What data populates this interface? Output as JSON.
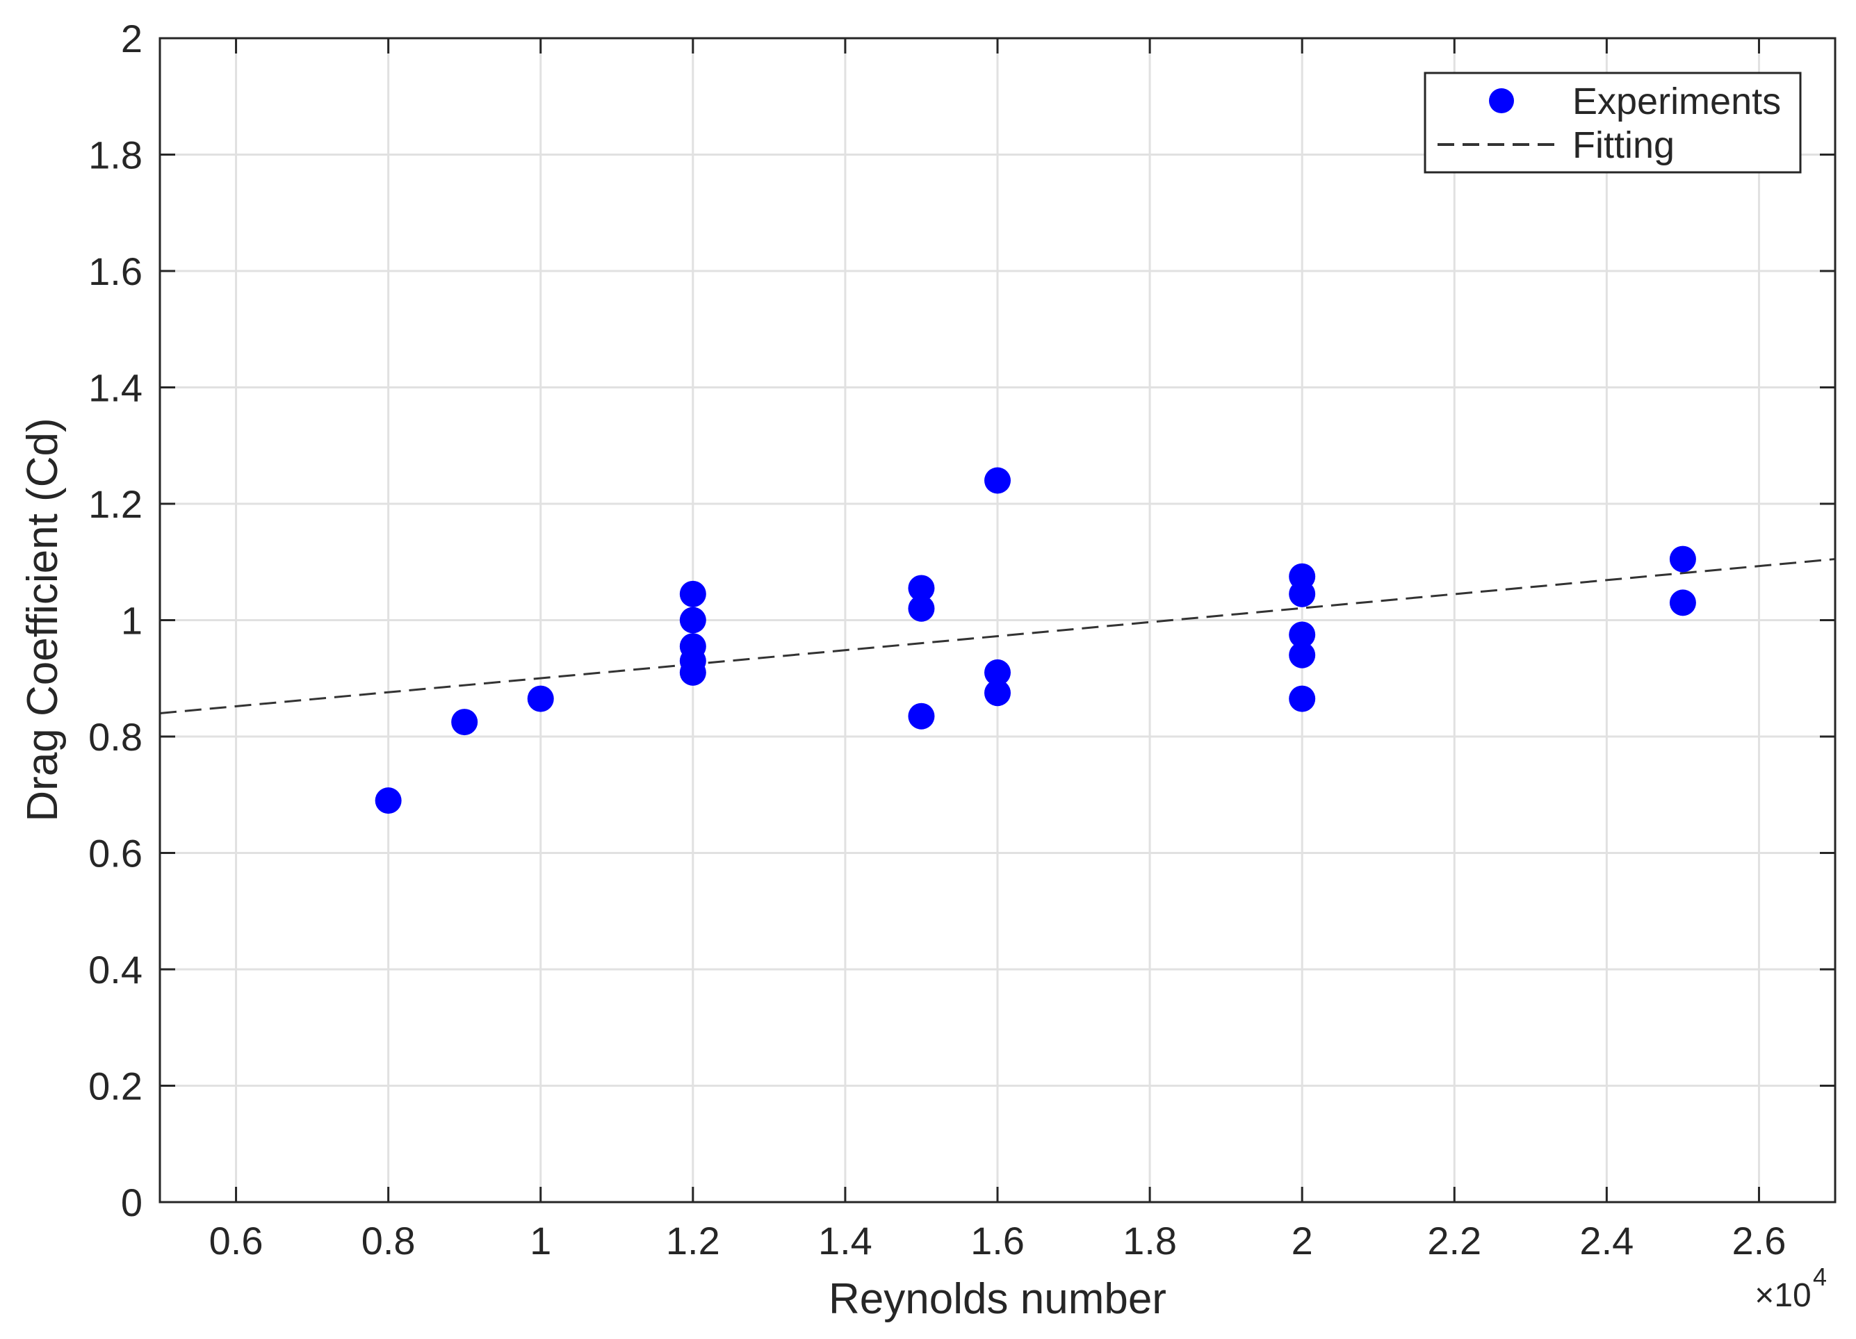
{
  "chart_data": {
    "type": "scatter",
    "xlabel": "Reynolds number",
    "ylabel": "Drag Coefficient (Cd)",
    "x_exponent_label": "×10",
    "x_exponent_power": "4",
    "xlim": [
      0.5,
      2.7
    ],
    "ylim": [
      0,
      2
    ],
    "xticks": [
      0.6,
      0.8,
      1,
      1.2,
      1.4,
      1.6,
      1.8,
      2,
      2.2,
      2.4,
      2.6
    ],
    "xtick_labels": [
      "0.6",
      "0.8",
      "1",
      "1.2",
      "1.4",
      "1.6",
      "1.8",
      "2",
      "2.2",
      "2.4",
      "2.6"
    ],
    "yticks": [
      0,
      0.2,
      0.4,
      0.6,
      0.8,
      1,
      1.2,
      1.4,
      1.6,
      1.8,
      2
    ],
    "ytick_labels": [
      "0",
      "0.2",
      "0.4",
      "0.6",
      "0.8",
      "1",
      "1.2",
      "1.4",
      "1.6",
      "1.8",
      "2"
    ],
    "grid": true,
    "legend_position": "top-right",
    "series": [
      {
        "name": "Experiments",
        "kind": "scatter",
        "color": "#0000ff",
        "points": [
          {
            "x": 0.8,
            "y": 0.69
          },
          {
            "x": 0.9,
            "y": 0.825
          },
          {
            "x": 1.0,
            "y": 0.865
          },
          {
            "x": 1.2,
            "y": 0.91
          },
          {
            "x": 1.2,
            "y": 0.93
          },
          {
            "x": 1.2,
            "y": 0.955
          },
          {
            "x": 1.2,
            "y": 1.0
          },
          {
            "x": 1.2,
            "y": 1.045
          },
          {
            "x": 1.5,
            "y": 0.835
          },
          {
            "x": 1.5,
            "y": 1.02
          },
          {
            "x": 1.5,
            "y": 1.055
          },
          {
            "x": 1.6,
            "y": 0.875
          },
          {
            "x": 1.6,
            "y": 0.91
          },
          {
            "x": 1.6,
            "y": 1.24
          },
          {
            "x": 2.0,
            "y": 0.865
          },
          {
            "x": 2.0,
            "y": 0.94
          },
          {
            "x": 2.0,
            "y": 0.975
          },
          {
            "x": 2.0,
            "y": 1.045
          },
          {
            "x": 2.0,
            "y": 1.075
          },
          {
            "x": 2.5,
            "y": 1.03
          },
          {
            "x": 2.5,
            "y": 1.105
          }
        ]
      },
      {
        "name": "Fitting",
        "kind": "line",
        "style": "dashed",
        "color": "#333333",
        "x": [
          0.5,
          2.7
        ],
        "y": [
          0.84,
          1.105
        ]
      }
    ]
  }
}
